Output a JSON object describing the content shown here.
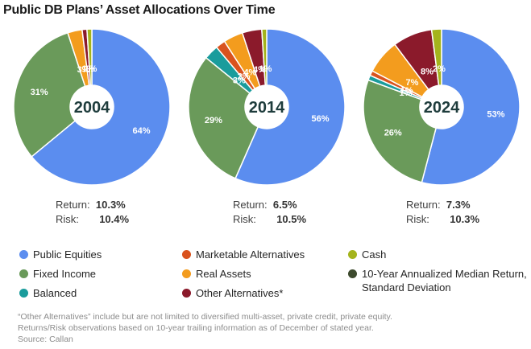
{
  "title": "Public DB Plans’ Asset Allocations Over Time",
  "chart_data": [
    {
      "type": "pie",
      "variant": "donut",
      "center_label": "2004",
      "slices": [
        {
          "label": "Public Equities",
          "value": 64,
          "text": "64%",
          "color": "#5b8def"
        },
        {
          "label": "Fixed Income",
          "value": 31,
          "text": "31%",
          "color": "#6a9a5a"
        },
        {
          "label": "Balanced",
          "value": 0,
          "text": "",
          "color": "#1a9c9c"
        },
        {
          "label": "Marketable Alternatives",
          "value": 0,
          "text": "",
          "color": "#d9531e"
        },
        {
          "label": "Real Assets",
          "value": 3,
          "text": "3%",
          "color": "#f39c1e"
        },
        {
          "label": "Other Alternatives*",
          "value": 1,
          "text": "1%",
          "color": "#8b1a2b"
        },
        {
          "label": "Cash",
          "value": 1,
          "text": "1%",
          "color": "#a4b41c"
        }
      ],
      "return_label": "Return:",
      "return_value": "10.3%",
      "risk_label": "Risk:",
      "risk_value": "10.4%"
    },
    {
      "type": "pie",
      "variant": "donut",
      "center_label": "2014",
      "slices": [
        {
          "label": "Public Equities",
          "value": 56,
          "text": "56%",
          "color": "#5b8def"
        },
        {
          "label": "Fixed Income",
          "value": 29,
          "text": "29%",
          "color": "#6a9a5a"
        },
        {
          "label": "Balanced",
          "value": 3,
          "text": "3%",
          "color": "#1a9c9c"
        },
        {
          "label": "Marketable Alternatives",
          "value": 2,
          "text": "2%",
          "color": "#d9531e"
        },
        {
          "label": "Real Assets",
          "value": 4,
          "text": "4%",
          "color": "#f39c1e"
        },
        {
          "label": "Other Alternatives*",
          "value": 4,
          "text": "4%",
          "color": "#8b1a2b"
        },
        {
          "label": "Cash",
          "value": 1,
          "text": "1%",
          "color": "#a4b41c"
        }
      ],
      "return_label": "Return:",
      "return_value": "6.5%",
      "risk_label": "Risk:",
      "risk_value": "10.5%"
    },
    {
      "type": "pie",
      "variant": "donut",
      "center_label": "2024",
      "slices": [
        {
          "label": "Public Equities",
          "value": 53,
          "text": "53%",
          "color": "#5b8def"
        },
        {
          "label": "Fixed Income",
          "value": 26,
          "text": "26%",
          "color": "#6a9a5a"
        },
        {
          "label": "Balanced",
          "value": 1,
          "text": "1%",
          "color": "#1a9c9c"
        },
        {
          "label": "Marketable Alternatives",
          "value": 1,
          "text": "1%",
          "color": "#d9531e"
        },
        {
          "label": "Real Assets",
          "value": 7,
          "text": "7%",
          "color": "#f39c1e"
        },
        {
          "label": "Other Alternatives*",
          "value": 8,
          "text": "8%",
          "color": "#8b1a2b"
        },
        {
          "label": "Cash",
          "value": 2,
          "text": "2%",
          "color": "#a4b41c"
        }
      ],
      "return_label": "Return:",
      "return_value": "7.3%",
      "risk_label": "Risk:",
      "risk_value": "10.3%"
    }
  ],
  "legend": [
    {
      "label": "Public Equities",
      "color": "#5b8def"
    },
    {
      "label": "Fixed Income",
      "color": "#6a9a5a"
    },
    {
      "label": "Balanced",
      "color": "#1a9c9c"
    },
    {
      "label": "Marketable Alternatives",
      "color": "#d9531e"
    },
    {
      "label": "Real Assets",
      "color": "#f39c1e"
    },
    {
      "label": "Other Alternatives*",
      "color": "#8b1a2b"
    },
    {
      "label": "Cash",
      "color": "#a4b41c"
    },
    {
      "label": "10-Year Annualized Median Return, Standard Deviation",
      "color": "#3d4a2e"
    }
  ],
  "footnote": {
    "line1": "“Other Alternatives” include but are not limited to diversified multi-asset, private credit, private equity.",
    "line2": "Returns/Risk observations based on 10-year trailing information as of December of stated year.",
    "line3": "Source: Callan"
  }
}
